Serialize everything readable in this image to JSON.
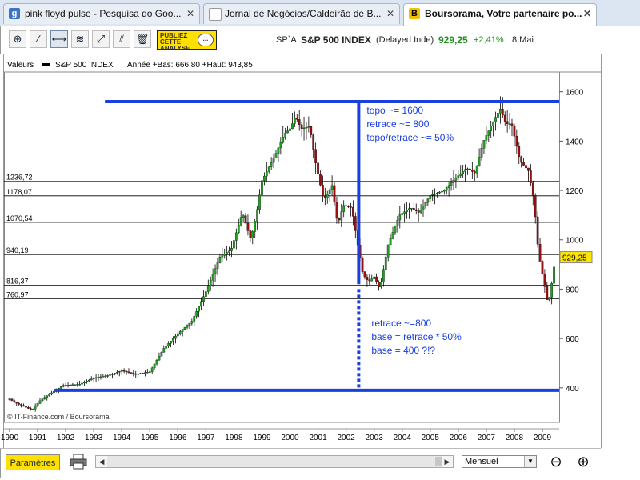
{
  "browser": {
    "tabs": [
      {
        "title": "pink floyd pulse - Pesquisa do Goo...",
        "favicon": "google-favicon",
        "fav_color": "#3b73c7",
        "fav_letter": "g"
      },
      {
        "title": "Jornal de Negócios/Caldeirão de B...",
        "favicon": "page-favicon",
        "fav_color": "#ffffff",
        "fav_letter": ""
      },
      {
        "title": "Boursorama, Votre partenaire po...",
        "favicon": "boursorama-favicon",
        "fav_color": "#f2c200",
        "fav_letter": "B"
      }
    ],
    "close_glyph": "✕"
  },
  "toolbar": {
    "tools": [
      {
        "name": "zoom-tool-icon",
        "glyph": "⊕"
      },
      {
        "name": "draw-line-icon",
        "glyph": "⁄"
      },
      {
        "name": "horizontal-line-icon",
        "glyph": "⟷"
      },
      {
        "name": "fibonacci-icon",
        "glyph": "≋"
      },
      {
        "name": "trend-channel-icon",
        "glyph": "⤢"
      },
      {
        "name": "parallel-lines-icon",
        "glyph": "⫽"
      },
      {
        "name": "trash-icon",
        "glyph": "🗑"
      }
    ],
    "ad_line1": "PUBLIEZ",
    "ad_line2": "CETTE",
    "ad_line3": "ANALYSE",
    "ad_bubble": "...",
    "quote_code": "SP`A",
    "quote_name": "S&P 500 INDEX",
    "quote_type": "(Delayed Inde)",
    "quote_price": "929,25",
    "quote_change": "+2,41%",
    "quote_date": "8 Mai"
  },
  "bottom": {
    "params_label": "Paramètres",
    "print_icon": "printer-icon",
    "period_value": "Mensuel",
    "scroll_left": "◀",
    "scroll_right": "▶",
    "dropdown": "▼",
    "zoom_out_glyph": "⊖",
    "zoom_in_glyph": "⊕"
  },
  "chart_data": {
    "type": "candlestick",
    "legend_label": "Valeurs",
    "series_name": "S&P 500 INDEX",
    "header_stats": "Année +Bas: 666,80 +Haut: 943,85",
    "credit": "© IT-Finance.com / Boursorama",
    "ylim": [
      260,
      1680
    ],
    "xlim": [
      1989.8,
      2009.6
    ],
    "y_ticks": [
      400,
      600,
      800,
      1000,
      1200,
      1400,
      1600
    ],
    "x_ticks": [
      1990,
      1991,
      1992,
      1993,
      1994,
      1995,
      1996,
      1997,
      1998,
      1999,
      2000,
      2001,
      2002,
      2003,
      2004,
      2005,
      2006,
      2007,
      2008,
      2009
    ],
    "h_levels": [
      {
        "value": 1236.72,
        "label": "1236,72"
      },
      {
        "value": 1178.07,
        "label": "1178,07"
      },
      {
        "value": 1070.54,
        "label": "1070,54"
      },
      {
        "value": 940.19,
        "label": "940,19"
      },
      {
        "value": 816.37,
        "label": "816,37"
      },
      {
        "value": 760.97,
        "label": "760,97"
      }
    ],
    "last_value": 929.25,
    "last_label": "929,25",
    "price_path": [
      [
        1990.0,
        355
      ],
      [
        1990.2,
        340
      ],
      [
        1990.5,
        325
      ],
      [
        1990.8,
        310
      ],
      [
        1991.1,
        350
      ],
      [
        1991.5,
        380
      ],
      [
        1991.9,
        410
      ],
      [
        1992.5,
        415
      ],
      [
        1993.0,
        440
      ],
      [
        1993.5,
        450
      ],
      [
        1994.0,
        470
      ],
      [
        1994.5,
        455
      ],
      [
        1995.0,
        465
      ],
      [
        1995.5,
        560
      ],
      [
        1996.0,
        620
      ],
      [
        1996.5,
        670
      ],
      [
        1997.0,
        790
      ],
      [
        1997.5,
        930
      ],
      [
        1997.9,
        960
      ],
      [
        1998.3,
        1110
      ],
      [
        1998.6,
        1000
      ],
      [
        1998.8,
        1100
      ],
      [
        1999.0,
        1240
      ],
      [
        1999.5,
        1350
      ],
      [
        1999.8,
        1430
      ],
      [
        2000.0,
        1450
      ],
      [
        2000.2,
        1500
      ],
      [
        2000.4,
        1450
      ],
      [
        2000.7,
        1460
      ],
      [
        2000.9,
        1320
      ],
      [
        2001.2,
        1160
      ],
      [
        2001.5,
        1220
      ],
      [
        2001.7,
        1060
      ],
      [
        2001.9,
        1140
      ],
      [
        2002.2,
        1130
      ],
      [
        2002.4,
        990
      ],
      [
        2002.6,
        860
      ],
      [
        2002.8,
        830
      ],
      [
        2003.0,
        850
      ],
      [
        2003.2,
        800
      ],
      [
        2003.5,
        980
      ],
      [
        2003.9,
        1100
      ],
      [
        2004.3,
        1130
      ],
      [
        2004.6,
        1110
      ],
      [
        2005.0,
        1180
      ],
      [
        2005.5,
        1200
      ],
      [
        2005.9,
        1250
      ],
      [
        2006.3,
        1290
      ],
      [
        2006.6,
        1270
      ],
      [
        2006.9,
        1400
      ],
      [
        2007.3,
        1490
      ],
      [
        2007.5,
        1530
      ],
      [
        2007.7,
        1470
      ],
      [
        2007.9,
        1470
      ],
      [
        2008.2,
        1320
      ],
      [
        2008.5,
        1280
      ],
      [
        2008.7,
        1160
      ],
      [
        2008.85,
        960
      ],
      [
        2008.95,
        890
      ],
      [
        2009.1,
        800
      ],
      [
        2009.2,
        735
      ],
      [
        2009.3,
        800
      ],
      [
        2009.4,
        870
      ],
      [
        2009.45,
        929.25
      ]
    ],
    "annotations": {
      "top_line_value": 1560,
      "top_line_range": [
        1993.4,
        2009.6
      ],
      "base_line_value": 390,
      "base_line_range": [
        1991.6,
        2009.6
      ],
      "vertical_x": 2002.45,
      "vertical_range": [
        1560,
        820
      ],
      "dashed_range": [
        800,
        390
      ],
      "text_top": [
        "topo ~= 1600",
        "retrace ~= 800",
        "topo/retrace ~= 50%"
      ],
      "text_base": [
        "retrace ~=800",
        "base = retrace * 50%",
        "base = 400 ?!?"
      ]
    }
  }
}
